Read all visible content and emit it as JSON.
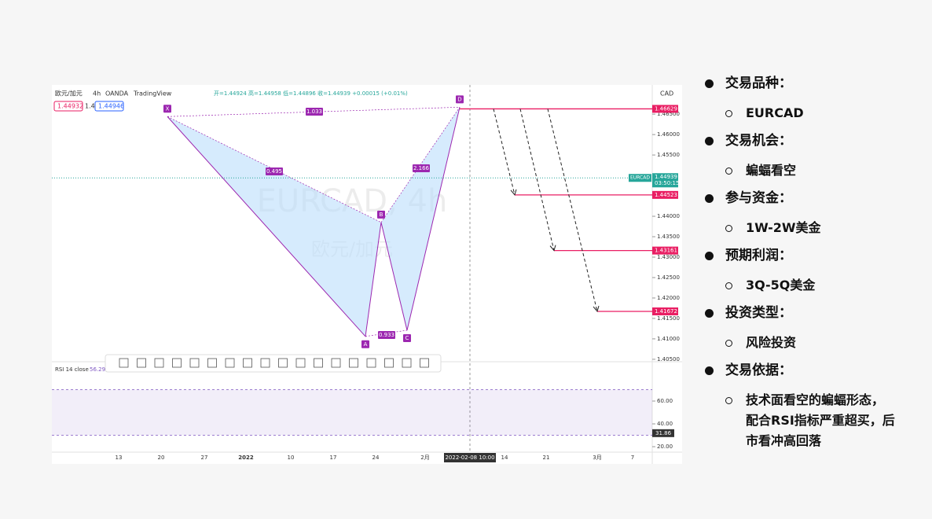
{
  "header": {
    "symbol": "欧元/加元",
    "interval": "4h",
    "broker": "OANDA",
    "source": "TradingView",
    "ohlc": "开=1.44924 高=1.44958 低=1.44896 收=1.44939 +0.00015 (+0.01%)",
    "bid": "1.44932",
    "spread": "1.4",
    "ask": "1.44946",
    "currency": "CAD"
  },
  "chart_data": {
    "type": "line",
    "watermark": "EURCAD, 4h",
    "watermark_sub": "欧元/加元",
    "categories": [
      "X",
      "A",
      "B",
      "C",
      "D"
    ],
    "values": [
      1.4644,
      1.4106,
      1.4385,
      1.4121,
      1.4667
    ],
    "color": "#9c27b0",
    "fill": "#bbdefb",
    "ratios": [
      1.033,
      0.495,
      0.933,
      2.166
    ],
    "ylim": [
      1.4044,
      1.4683
    ],
    "yticks": [
      {
        "value": 1.465,
        "label": "1.46500"
      },
      {
        "value": 1.46,
        "label": "1.46000"
      },
      {
        "value": 1.455,
        "label": "1.45500"
      },
      {
        "value": 1.44,
        "label": "1.44000"
      },
      {
        "value": 1.435,
        "label": "1.43500"
      },
      {
        "value": 1.43,
        "label": "1.43000"
      },
      {
        "value": 1.425,
        "label": "1.42500"
      },
      {
        "value": 1.42,
        "label": "1.42000"
      },
      {
        "value": 1.415,
        "label": "1.41500"
      },
      {
        "value": 1.41,
        "label": "1.41000"
      },
      {
        "value": 1.405,
        "label": "1.40500"
      }
    ],
    "x_labels": [
      "13",
      "20",
      "27",
      "2022",
      "10",
      "17",
      "24",
      "2月",
      "2022-02-08 10:00",
      "14",
      "21",
      "3月",
      "7"
    ],
    "levels": {
      "values": [
        1.46629,
        1.44523,
        1.43161,
        1.41672
      ],
      "color": "#e91e63"
    },
    "last_price": {
      "name": "EURCAD",
      "value": 1.44939,
      "countdown": "03:50:15",
      "color": "#26a69a"
    },
    "rsi": {
      "name": "RSI 14 close",
      "value": 56.29,
      "ma": 31.86,
      "ylim": [
        15.2,
        93.1
      ],
      "band": [
        30,
        70
      ],
      "color": "#7e57c2",
      "yticks": [
        {
          "value": 60,
          "label": "60.00"
        },
        {
          "value": 40,
          "label": "40.00"
        },
        {
          "value": 20,
          "label": "20.00"
        }
      ]
    }
  },
  "bullets": [
    {
      "text": "交易品种：",
      "sub": "EURCAD"
    },
    {
      "text": "交易机会：",
      "sub": "蝙蝠看空"
    },
    {
      "text": "参与资金：",
      "sub": "1W-2W美金"
    },
    {
      "text": "预期利润：",
      "sub": "3Q-5Q美金"
    },
    {
      "text": "投资类型：",
      "sub": "风险投资"
    },
    {
      "text": "交易依据：",
      "sub": "技术面看空的蝙蝠形态，配合RSI指标严重超买，后市看冲高回落"
    }
  ]
}
